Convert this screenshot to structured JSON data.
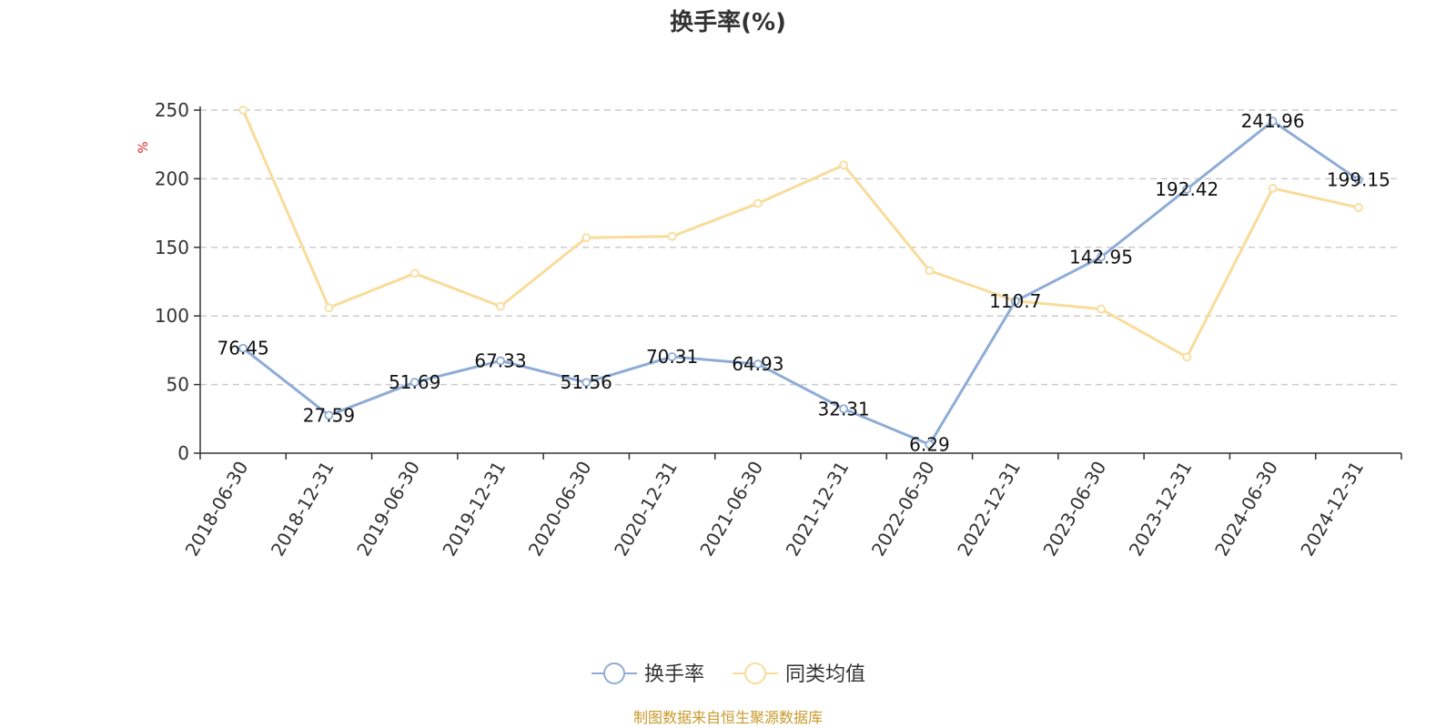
{
  "chart_data": {
    "type": "line",
    "title": "换手率(%)",
    "ylabel": "%",
    "xlabel": "",
    "ylim": [
      0,
      250
    ],
    "yticks": [
      0,
      50,
      100,
      150,
      200,
      250
    ],
    "grid": true,
    "legend_position": "bottom-center",
    "categories": [
      "2018-06-30",
      "2018-12-31",
      "2019-06-30",
      "2019-12-31",
      "2020-06-30",
      "2020-12-31",
      "2021-06-30",
      "2021-12-31",
      "2022-06-30",
      "2022-12-31",
      "2023-06-30",
      "2023-12-31",
      "2024-06-30",
      "2024-12-31"
    ],
    "series": [
      {
        "name": "换手率",
        "color": "#8eacd6",
        "values": [
          76.45,
          27.59,
          51.69,
          67.33,
          51.56,
          70.31,
          64.93,
          32.31,
          6.29,
          110.7,
          142.95,
          192.42,
          241.96,
          199.15
        ],
        "labels": [
          "76.45",
          "27.59",
          "51.69",
          "67.33",
          "51.56",
          "70.31",
          "64.93",
          "32.31",
          "6.29",
          "110.7",
          "142.95",
          "192.42",
          "241.96",
          "199.15"
        ]
      },
      {
        "name": "同类均值",
        "color": "#f9dc9b",
        "values": [
          250,
          106,
          131,
          107,
          157,
          158,
          182,
          210,
          133,
          111,
          105,
          70,
          193,
          179
        ]
      }
    ],
    "source": "制图数据来自恒生聚源数据库"
  }
}
